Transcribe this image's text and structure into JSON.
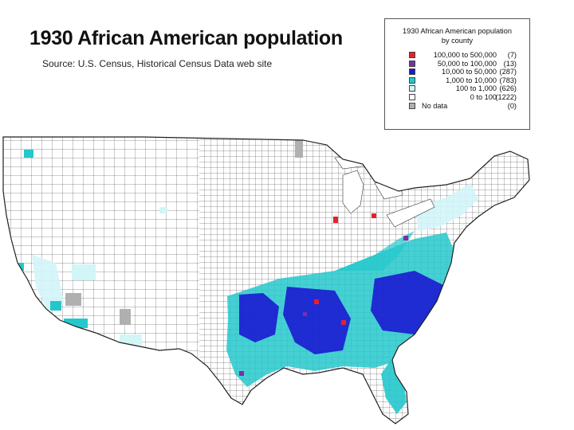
{
  "title": "1930 African American population",
  "source": "Source:  U.S. Census, Historical Census Data web site",
  "legend": {
    "title_line1": "1930 African American population",
    "title_line2": "by county",
    "items": [
      {
        "range": "100,000 to 500,000",
        "count": "(7)",
        "color": "#e8202a"
      },
      {
        "range": "50,000 to 100,000",
        "count": "(13)",
        "color": "#7b2fa8"
      },
      {
        "range": "10,000 to  50,000",
        "count": "(287)",
        "color": "#1a1ad0"
      },
      {
        "range": "1,000 to  10,000",
        "count": "(783)",
        "color": "#24c8cc"
      },
      {
        "range": "100 to    1,000",
        "count": "(626)",
        "color": "#d2f5f8"
      },
      {
        "range": "0 to      100",
        "count": "(1222)",
        "color": "#ffffff"
      },
      {
        "range": "No data",
        "count": "(0)",
        "color": "#b0b0b0",
        "align": "left"
      }
    ]
  },
  "map": {
    "colors": {
      "ocean": "#ffffff",
      "land": "#ffffff",
      "borders": "#333333",
      "lakes": "#ffffff",
      "high": "#e8202a",
      "very_high": "#7b2fa8",
      "mid": "#1a1ad0",
      "low": "#24c8cc",
      "very_low": "#d2f5f8",
      "none": "#ffffff",
      "nodata": "#b0b0b0"
    }
  }
}
